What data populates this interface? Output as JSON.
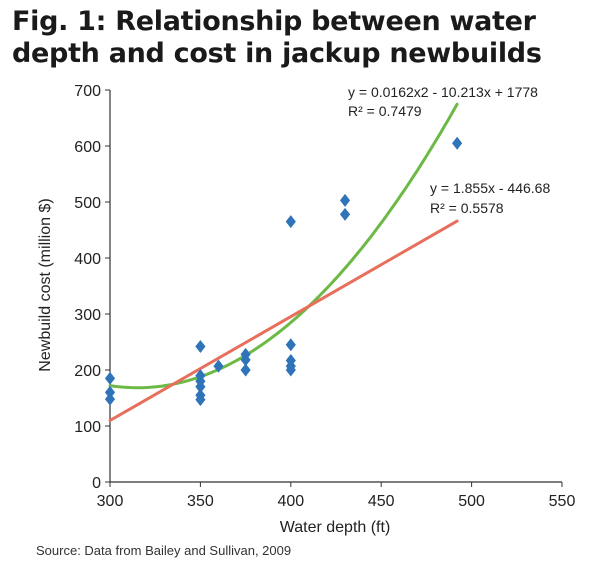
{
  "figure": {
    "title": "Fig. 1: Relationship between water depth and cost in jackup newbuilds",
    "source": "Source: Data from Bailey and Sullivan, 2009"
  },
  "chart_data": {
    "type": "scatter",
    "title": "Fig. 1: Relationship between water depth and cost in jackup newbuilds",
    "xlabel": "Water depth (ft)",
    "ylabel": "Newbuild cost (million $)",
    "xlim": [
      300,
      550
    ],
    "ylim": [
      0,
      700
    ],
    "x_ticks": [
      "300",
      "350",
      "400",
      "450",
      "500",
      "550"
    ],
    "y_ticks": [
      "0",
      "100",
      "200",
      "300",
      "400",
      "500",
      "600",
      "700"
    ],
    "grid": false,
    "marker_color": "#2f74b8",
    "points": [
      {
        "x": 300,
        "y": 185
      },
      {
        "x": 300,
        "y": 160
      },
      {
        "x": 300,
        "y": 148
      },
      {
        "x": 350,
        "y": 242
      },
      {
        "x": 350,
        "y": 190
      },
      {
        "x": 350,
        "y": 180
      },
      {
        "x": 350,
        "y": 170
      },
      {
        "x": 350,
        "y": 155
      },
      {
        "x": 350,
        "y": 147
      },
      {
        "x": 360,
        "y": 207
      },
      {
        "x": 375,
        "y": 228
      },
      {
        "x": 375,
        "y": 218
      },
      {
        "x": 375,
        "y": 200
      },
      {
        "x": 400,
        "y": 465
      },
      {
        "x": 400,
        "y": 245
      },
      {
        "x": 400,
        "y": 217
      },
      {
        "x": 400,
        "y": 207
      },
      {
        "x": 400,
        "y": 200
      },
      {
        "x": 430,
        "y": 503
      },
      {
        "x": 430,
        "y": 478
      },
      {
        "x": 492,
        "y": 605
      }
    ],
    "trendlines": [
      {
        "kind": "polynomial",
        "color": "#6cb945",
        "coefficients": [
          0.0162,
          -10.213,
          1778
        ],
        "x_range": [
          300,
          492
        ],
        "equation": "y = 0.0162x2 - 10.213x + 1778",
        "r2": "R² = 0.7479"
      },
      {
        "kind": "linear",
        "color": "#e76f5c",
        "coefficients": [
          1.855,
          -446.68
        ],
        "x_range": [
          300,
          492
        ],
        "equation": "y = 1.855x - 446.68",
        "r2": "R² = 0.5578"
      }
    ]
  }
}
